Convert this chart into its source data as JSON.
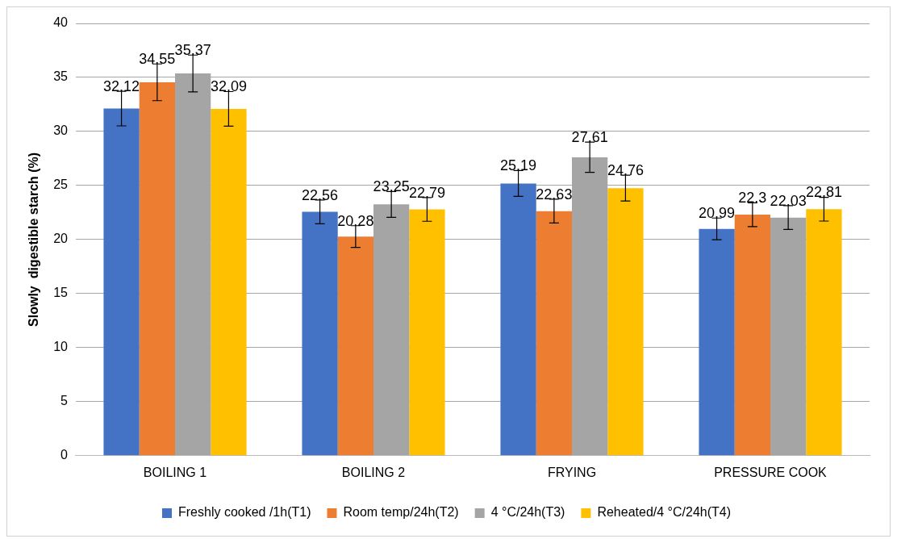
{
  "chart_data": {
    "type": "bar",
    "ylabel": "Slowly  digestible starch (%)",
    "categories": [
      "BOILING 1",
      "BOILING 2",
      "FRYING",
      "PRESSURE COOK"
    ],
    "series": [
      {
        "name": "Freshly cooked /1h(T1)",
        "color": "#4472c4",
        "values": [
          32.12,
          22.56,
          25.19,
          20.99
        ],
        "errors": [
          1.6,
          1.1,
          1.2,
          1.0
        ]
      },
      {
        "name": "Room temp/24h(T2)",
        "color": "#ed7d31",
        "values": [
          34.55,
          20.28,
          22.63,
          22.3
        ],
        "errors": [
          1.7,
          1.0,
          1.1,
          1.1
        ]
      },
      {
        "name": "4 °C/24h(T3)",
        "color": "#a5a5a5",
        "values": [
          35.37,
          23.25,
          27.61,
          22.03
        ],
        "errors": [
          1.7,
          1.2,
          1.4,
          1.1
        ]
      },
      {
        "name": "Reheated/4 °C/24h(T4)",
        "color": "#ffc000",
        "values": [
          32.09,
          22.79,
          24.76,
          22.81
        ],
        "errors": [
          1.6,
          1.1,
          1.2,
          1.1
        ]
      }
    ],
    "ylim": [
      0,
      40
    ],
    "yticks": [
      0,
      5,
      10,
      15,
      20,
      25,
      30,
      35,
      40
    ],
    "grid": "y",
    "legend": "bottom",
    "data_labels": true
  }
}
